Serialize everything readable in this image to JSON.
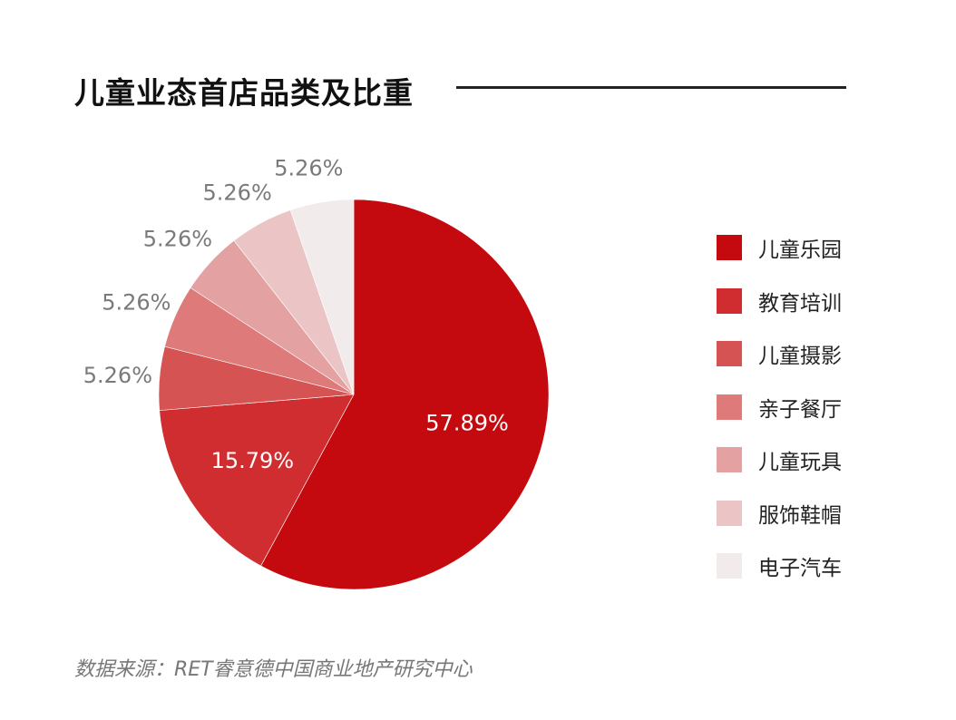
{
  "title": "儿童业态首店品类及比重",
  "source": "数据来源：RET睿意德中国商业地产研究中心",
  "chart_data": {
    "type": "pie",
    "title": "儿童业态首店品类及比重",
    "categories": [
      "儿童乐园",
      "教育培训",
      "儿童摄影",
      "亲子餐厅",
      "儿童玩具",
      "服饰鞋帽",
      "电子汽车"
    ],
    "values": [
      57.89,
      15.79,
      5.26,
      5.26,
      5.26,
      5.26,
      5.26
    ],
    "labels": [
      "57.89%",
      "15.79%",
      "5.26%",
      "5.26%",
      "5.26%",
      "5.26%",
      "5.26%"
    ],
    "colors": [
      "#c40a0e",
      "#cf2d30",
      "#d65354",
      "#de7a79",
      "#e4a1a2",
      "#ebc5c6",
      "#f2ebec"
    ],
    "start_angle": "12 o'clock, clockwise",
    "legend_position": "right"
  },
  "legend": [
    {
      "label": "儿童乐园",
      "color": "#c40a0e"
    },
    {
      "label": "教育培训",
      "color": "#cf2d30"
    },
    {
      "label": "儿童摄影",
      "color": "#d65354"
    },
    {
      "label": "亲子餐厅",
      "color": "#de7a79"
    },
    {
      "label": "儿童玩具",
      "color": "#e4a1a2"
    },
    {
      "label": "服饰鞋帽",
      "color": "#ebc5c6"
    },
    {
      "label": "电子汽车",
      "color": "#f2ebec"
    }
  ]
}
